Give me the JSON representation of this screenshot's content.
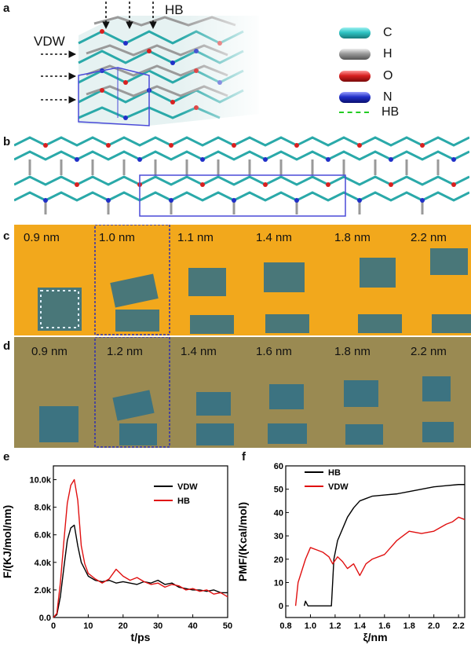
{
  "panel_labels": {
    "a": "a",
    "b": "b",
    "c": "c",
    "d": "d",
    "e": "e",
    "f": "f"
  },
  "panel_a": {
    "hb_label": "HB",
    "vdw_label": "VDW",
    "legend": [
      {
        "label": "C",
        "color": "#2ec4c4"
      },
      {
        "label": "H",
        "color": "#9a9a9a"
      },
      {
        "label": "O",
        "color": "#d82020"
      },
      {
        "label": "N",
        "color": "#2030c8"
      },
      {
        "label": "HB",
        "color": "#22cc22"
      }
    ]
  },
  "panel_c": {
    "labels": [
      "0.9 nm",
      "1.0 nm",
      "1.1 nm",
      "1.4 nm",
      "1.8 nm",
      "2.2 nm"
    ],
    "bg_color": "#f2a81c"
  },
  "panel_d": {
    "labels": [
      "0.9 nm",
      "1.2 nm",
      "1.4 nm",
      "1.6 nm",
      "1.8 nm",
      "2.2 nm"
    ],
    "bg_color": "#9a8a52"
  },
  "chart_data": [
    {
      "panel": "e",
      "type": "line",
      "xlabel": "t/ps",
      "ylabel": "F/(KJ/mol/nm)",
      "xlim": [
        0,
        50
      ],
      "ylim": [
        0,
        11000
      ],
      "xticks": [
        0,
        10,
        20,
        30,
        40,
        50
      ],
      "xtick_labels": [
        "0",
        "10",
        "20",
        "30",
        "40",
        "50"
      ],
      "yticks": [
        0,
        2000,
        4000,
        6000,
        8000,
        10000
      ],
      "ytick_labels": [
        "0.0",
        "2.0k",
        "4.0k",
        "6.0k",
        "8.0k",
        "10.0k"
      ],
      "series": [
        {
          "name": "VDW",
          "color": "#000000",
          "x": [
            0,
            1,
            2,
            3,
            4,
            5,
            6,
            7,
            8,
            9,
            10,
            12,
            14,
            16,
            18,
            20,
            22,
            24,
            26,
            28,
            30,
            32,
            34,
            36,
            38,
            40,
            42,
            44,
            46,
            48,
            50
          ],
          "y": [
            0,
            200,
            1500,
            3600,
            5600,
            6500,
            6700,
            5200,
            4000,
            3500,
            3000,
            2700,
            2600,
            2700,
            2500,
            2600,
            2500,
            2400,
            2600,
            2500,
            2700,
            2400,
            2500,
            2200,
            2100,
            2000,
            2000,
            1900,
            2000,
            1800,
            1800
          ]
        },
        {
          "name": "HB",
          "color": "#e01010",
          "x": [
            0,
            1,
            2,
            3,
            4,
            5,
            6,
            7,
            8,
            9,
            10,
            12,
            14,
            16,
            18,
            20,
            22,
            24,
            26,
            28,
            30,
            32,
            34,
            36,
            38,
            40,
            42,
            44,
            46,
            48,
            50
          ],
          "y": [
            0,
            300,
            2500,
            5500,
            8300,
            9600,
            10000,
            8500,
            5200,
            3900,
            3200,
            2800,
            2500,
            2800,
            3500,
            3000,
            2700,
            2900,
            2600,
            2400,
            2500,
            2200,
            2400,
            2300,
            2000,
            2100,
            1900,
            2000,
            1700,
            1800,
            1500
          ]
        }
      ]
    },
    {
      "panel": "f",
      "type": "line",
      "xlabel": "ξ/nm",
      "ylabel": "PMF/(Kcal/mol)",
      "xlim": [
        0.8,
        2.25
      ],
      "ylim": [
        -5,
        60
      ],
      "xticks": [
        0.8,
        1.0,
        1.2,
        1.4,
        1.6,
        1.8,
        2.0,
        2.2
      ],
      "xtick_labels": [
        "0.8",
        "1.0",
        "1.2",
        "1.4",
        "1.6",
        "1.8",
        "2.0",
        "2.2"
      ],
      "yticks": [
        0,
        10,
        20,
        30,
        40,
        50,
        60
      ],
      "ytick_labels": [
        "0",
        "10",
        "20",
        "30",
        "40",
        "50",
        "60"
      ],
      "series": [
        {
          "name": "HB",
          "color": "#000000",
          "x": [
            0.95,
            0.96,
            0.98,
            1.0,
            1.05,
            1.1,
            1.15,
            1.17,
            1.19,
            1.22,
            1.26,
            1.3,
            1.35,
            1.4,
            1.45,
            1.5,
            1.6,
            1.7,
            1.8,
            1.9,
            2.0,
            2.1,
            2.2,
            2.25
          ],
          "y": [
            0,
            2,
            0,
            0,
            0,
            0,
            0,
            0,
            20,
            28,
            33,
            38,
            42,
            45,
            46,
            47,
            47.5,
            48,
            49,
            50,
            51,
            51.5,
            52,
            52
          ]
        },
        {
          "name": "VDW",
          "color": "#e01010",
          "x": [
            0.88,
            0.9,
            0.93,
            0.96,
            1.0,
            1.05,
            1.1,
            1.15,
            1.18,
            1.22,
            1.26,
            1.3,
            1.35,
            1.4,
            1.45,
            1.5,
            1.6,
            1.65,
            1.7,
            1.75,
            1.8,
            1.9,
            2.0,
            2.1,
            2.15,
            2.2,
            2.25
          ],
          "y": [
            0,
            10,
            15,
            20,
            25,
            24,
            23,
            21,
            18,
            21,
            19,
            16,
            18,
            13,
            18,
            20,
            22,
            25,
            28,
            30,
            32,
            31,
            32,
            35,
            36,
            38,
            37
          ]
        }
      ]
    }
  ]
}
